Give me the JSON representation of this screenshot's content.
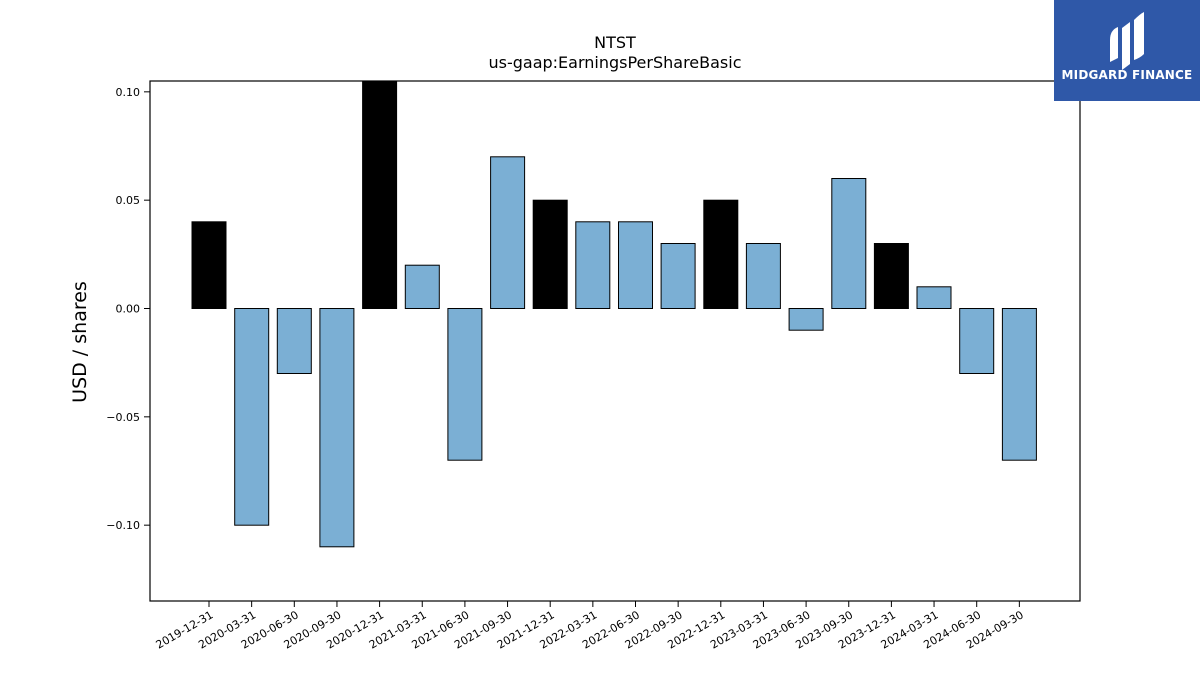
{
  "brand": {
    "name": "MIDGARD FINANCE",
    "bg_color": "#2f58a8"
  },
  "chart_data": {
    "type": "bar",
    "title": "NTST",
    "subtitle": "us-gaap:EarningsPerShareBasic",
    "xlabel": "",
    "ylabel": "USD / shares",
    "ylim": [
      -0.135,
      0.105
    ],
    "yticks": [
      "0.10",
      "0.05",
      "0.00",
      "−0.05",
      "−0.10"
    ],
    "ytick_values": [
      0.1,
      0.05,
      0.0,
      -0.05,
      -0.1
    ],
    "grid": false,
    "categories": [
      "2019-12-31",
      "2020-03-31",
      "2020-06-30",
      "2020-09-30",
      "2020-12-31",
      "2021-03-31",
      "2021-06-30",
      "2021-09-30",
      "2021-12-31",
      "2022-03-31",
      "2022-06-30",
      "2022-09-30",
      "2022-12-31",
      "2023-03-31",
      "2023-06-30",
      "2023-09-30",
      "2023-12-31",
      "2024-03-31",
      "2024-06-30",
      "2024-09-30"
    ],
    "values": [
      0.04,
      -0.1,
      -0.03,
      -0.11,
      0.11,
      0.02,
      -0.07,
      0.07,
      0.05,
      0.04,
      0.04,
      0.03,
      0.05,
      0.03,
      -0.01,
      0.06,
      0.03,
      0.01,
      -0.03,
      -0.07
    ],
    "annual_flags": [
      true,
      false,
      false,
      false,
      true,
      false,
      false,
      false,
      true,
      false,
      false,
      false,
      true,
      false,
      false,
      false,
      true,
      false,
      false,
      false
    ],
    "colors": {
      "annual": "#000000",
      "quarterly": "#7bafd4",
      "edge": "#000000"
    }
  }
}
